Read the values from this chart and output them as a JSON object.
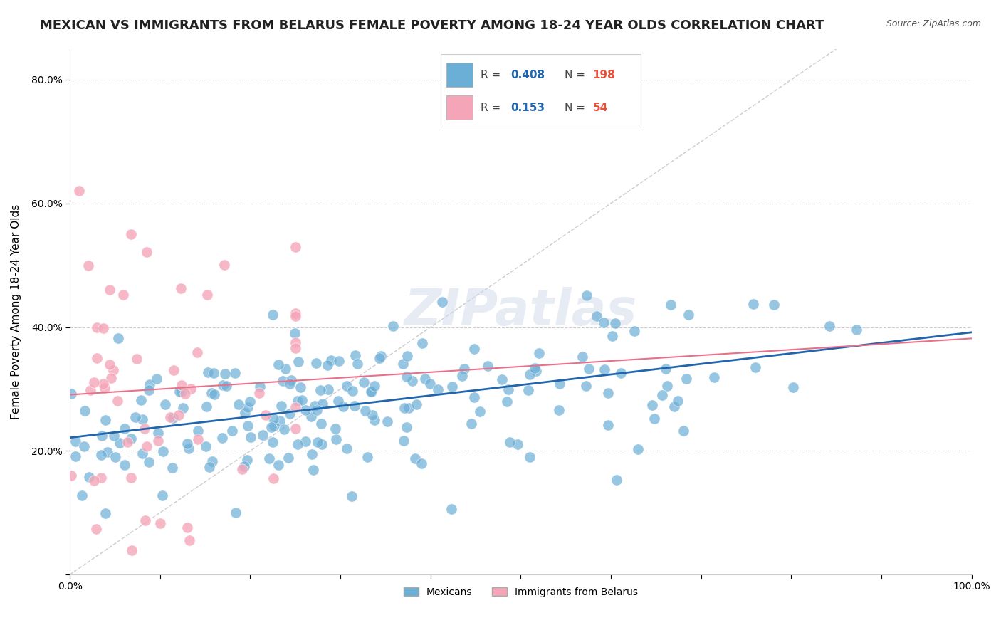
{
  "title": "MEXICAN VS IMMIGRANTS FROM BELARUS FEMALE POVERTY AMONG 18-24 YEAR OLDS CORRELATION CHART",
  "source": "Source: ZipAtlas.com",
  "ylabel": "Female Poverty Among 18-24 Year Olds",
  "legend_r_mexican": "0.408",
  "legend_n_mexican": "198",
  "legend_r_belarus": "0.153",
  "legend_n_belarus": "54",
  "legend_label_mexican": "Mexicans",
  "legend_label_belarus": "Immigrants from Belarus",
  "color_mexican": "#6baed6",
  "color_belarus": "#f4a6b8",
  "color_mexican_line": "#2166ac",
  "color_belarus_line": "#e8708a",
  "background_color": "#ffffff",
  "grid_color": "#cccccc",
  "title_fontsize": 13,
  "axis_label_fontsize": 11,
  "tick_fontsize": 10
}
